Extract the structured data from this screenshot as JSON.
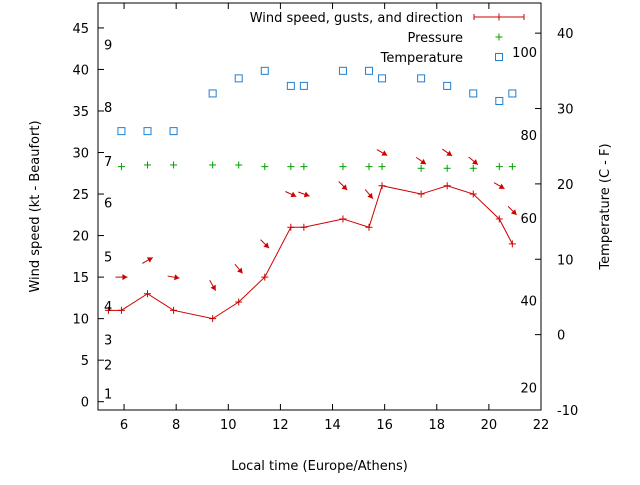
{
  "chart_data": {
    "type": "line",
    "xlabel": "Local time (Europe/Athens)",
    "ylabel": "Wind speed (kt - Beaufort)",
    "y2label": "Temperature (C - F)",
    "xlim": [
      5,
      22
    ],
    "ylim": [
      -1,
      48
    ],
    "y2lim": [
      -10,
      44
    ],
    "x_ticks": [
      6,
      8,
      10,
      12,
      14,
      16,
      18,
      20,
      22
    ],
    "y_ticks": [
      0,
      5,
      10,
      15,
      20,
      25,
      30,
      35,
      40,
      45
    ],
    "y2_ticks": [
      -10,
      0,
      10,
      20,
      30,
      40
    ],
    "beaufort_labels": [
      {
        "label": "1",
        "y": 1
      },
      {
        "label": "2",
        "y": 4.5
      },
      {
        "label": "3",
        "y": 7.5
      },
      {
        "label": "4",
        "y": 11.5
      },
      {
        "label": "5",
        "y": 17.5
      },
      {
        "label": "6",
        "y": 24
      },
      {
        "label": "7",
        "y": 29
      },
      {
        "label": "8",
        "y": 35.5
      },
      {
        "label": "9",
        "y": 43
      }
    ],
    "fahrenheit_labels": [
      {
        "label": "20",
        "y2": -7
      },
      {
        "label": "40",
        "y2": 4.5
      },
      {
        "label": "60",
        "y2": 15.5
      },
      {
        "label": "80",
        "y2": 26.5
      },
      {
        "label": "100",
        "y2": 37.5
      }
    ],
    "legend_position": "top-right",
    "series": [
      {
        "name": "Wind speed, gusts, and direction",
        "color": "#cc0000",
        "marker": "plus",
        "line": true,
        "x": [
          5.4,
          5.9,
          6.9,
          7.9,
          9.4,
          10.4,
          11.4,
          12.4,
          12.9,
          14.4,
          15.4,
          15.9,
          17.4,
          18.4,
          19.4,
          20.4,
          20.9
        ],
        "y": [
          11,
          11,
          13,
          11,
          10,
          12,
          15,
          21,
          21,
          22,
          21,
          26,
          25,
          26,
          25,
          22,
          19
        ]
      },
      {
        "name": "Pressure",
        "color": "#00a000",
        "marker": "plus",
        "line": false,
        "x": [
          5.9,
          6.9,
          7.9,
          9.4,
          10.4,
          11.4,
          12.4,
          12.9,
          14.4,
          15.4,
          15.9,
          17.4,
          18.4,
          19.4,
          20.4,
          20.9
        ],
        "y": [
          28.3,
          28.5,
          28.5,
          28.5,
          28.5,
          28.3,
          28.3,
          28.3,
          28.3,
          28.3,
          28.3,
          28.1,
          28.1,
          28.1,
          28.3,
          28.3
        ]
      },
      {
        "name": "Temperature",
        "color": "#1f7fd0",
        "marker": "square",
        "line": false,
        "axis": "y2",
        "x": [
          5.9,
          6.9,
          7.9,
          9.4,
          10.4,
          11.4,
          12.4,
          12.9,
          14.4,
          15.4,
          15.9,
          17.4,
          18.4,
          19.4,
          20.4,
          20.9
        ],
        "y": [
          27,
          27,
          27,
          32,
          34,
          35,
          33,
          33,
          35,
          35,
          34,
          34,
          33,
          32,
          31,
          32
        ]
      }
    ],
    "wind_direction_arrows": {
      "color": "#cc0000",
      "points": [
        {
          "x": 5.9,
          "y": 15,
          "heading_deg": 90
        },
        {
          "x": 6.9,
          "y": 17,
          "heading_deg": 60
        },
        {
          "x": 7.9,
          "y": 15,
          "heading_deg": 100
        },
        {
          "x": 9.4,
          "y": 14,
          "heading_deg": 150
        },
        {
          "x": 10.4,
          "y": 16,
          "heading_deg": 140
        },
        {
          "x": 11.4,
          "y": 19,
          "heading_deg": 135
        },
        {
          "x": 12.4,
          "y": 25,
          "heading_deg": 115
        },
        {
          "x": 12.9,
          "y": 25,
          "heading_deg": 110
        },
        {
          "x": 14.4,
          "y": 26,
          "heading_deg": 135
        },
        {
          "x": 15.4,
          "y": 25,
          "heading_deg": 140
        },
        {
          "x": 15.9,
          "y": 30,
          "heading_deg": 120
        },
        {
          "x": 17.4,
          "y": 29,
          "heading_deg": 125
        },
        {
          "x": 18.4,
          "y": 30,
          "heading_deg": 125
        },
        {
          "x": 19.4,
          "y": 29,
          "heading_deg": 130
        },
        {
          "x": 20.4,
          "y": 26,
          "heading_deg": 120
        },
        {
          "x": 20.9,
          "y": 23,
          "heading_deg": 135
        }
      ]
    }
  }
}
